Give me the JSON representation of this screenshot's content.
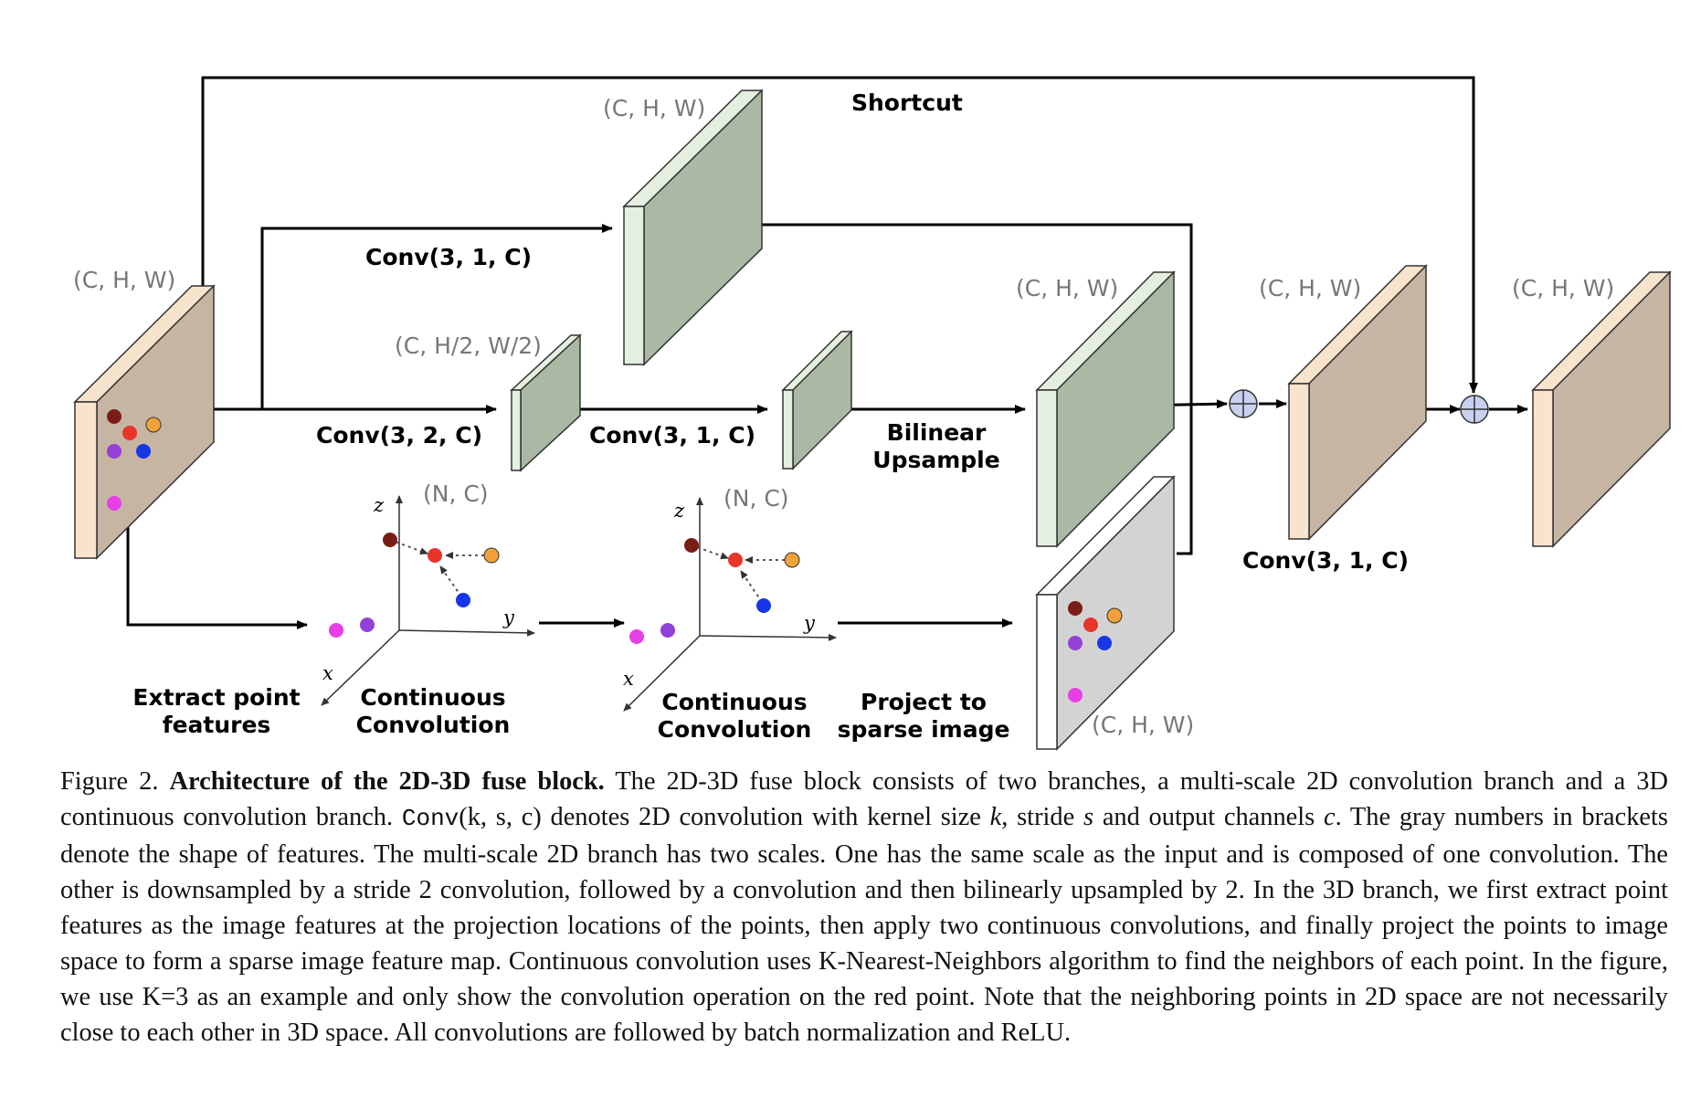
{
  "figure": {
    "shape_labels": {
      "input": "(C, H, W)",
      "top_conv": "(C, H, W)",
      "downsampled": "(C, H/2, W/2)",
      "upsampled": "(C, H, W)",
      "fused": "(C, H, W)",
      "output": "(C, H, W)",
      "sparse": "(C, H, W)",
      "points_1": "(N, C)",
      "points_2": "(N, C)"
    },
    "op_labels": {
      "shortcut": "Shortcut",
      "conv_top": "Conv(3, 1, C)",
      "conv_down": "Conv(3, 2, C)",
      "conv_mid": "Conv(3, 1, C)",
      "bilinear_1": "Bilinear",
      "bilinear_2": "Upsample",
      "conv_fuse": "Conv(3, 1, C)",
      "extract_1": "Extract point",
      "extract_2": "features",
      "cconv1_1": "Continuous",
      "cconv1_2": "Convolution",
      "cconv2_1": "Continuous",
      "cconv2_2": "Convolution",
      "project_1": "Project to",
      "project_2": "sparse image"
    },
    "axis_labels": {
      "x": "x",
      "y": "y",
      "z": "z"
    },
    "colors": {
      "input_feature": "#c7b5a4",
      "input_edge": "#f8e3cc",
      "conv_feature": "#aab8a4",
      "conv_edge": "#e4efdf",
      "sparse_feature": "#d3d3d3",
      "sparse_edge": "#ffffff",
      "point_dark_red": "#7b1d17",
      "point_red": "#e8342a",
      "point_orange": "#f2a238",
      "point_purple": "#9340d8",
      "point_blue": "#1736e6",
      "point_magenta": "#e63fe6",
      "sum_node": "#c9d1f0"
    }
  },
  "caption": {
    "fig_label": "Figure 2.",
    "title": "Architecture of the 2D-3D fuse block.",
    "part1": "The 2D-3D fuse block consists of two branches, a multi-scale 2D convolution branch and a 3D continuous convolution branch.",
    "conv_func": "Conv",
    "conv_args": "(k, s, c)",
    "part2": "denotes 2D convolution with kernel size",
    "k": "k",
    "part3": ", stride",
    "s": "s",
    "part4": "and output channels",
    "c": "c",
    "part5": ". The gray numbers in brackets denote the shape of features. The multi-scale 2D branch has two scales. One has the same scale as the input and is composed of one convolution. The other is downsampled by a stride 2 convolution, followed by a convolution and then bilinearly upsampled by 2. In the 3D branch, we first extract point features as the image features at the projection locations of the points, then apply two continuous convolutions, and finally project the points to image space to form a sparse image feature map. Continuous convolution uses K-Nearest-Neighbors algorithm to find the neighbors of each point. In the figure, we use K=3 as an example and only show the convolution operation on the red point. Note that the neighboring points in 2D space are not necessarily close to each other in 3D space. All convolutions are followed by batch normalization and ReLU."
  }
}
